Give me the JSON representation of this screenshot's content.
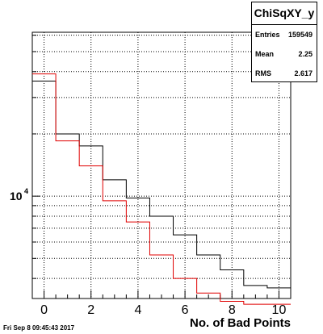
{
  "chart_data": {
    "type": "bar",
    "histogram_name": "ChiSqXY_y",
    "xlabel": "No. of Bad Points",
    "ylabel": "",
    "log_y": true,
    "grid": true,
    "xlim": [
      -0.5,
      10.5
    ],
    "ylim": [
      3200,
      62000
    ],
    "x_ticks": [
      "0",
      "2",
      "4",
      "6",
      "8",
      "10"
    ],
    "y_ticks": [
      "10^4"
    ],
    "bin_edges": [
      -0.5,
      0.5,
      1.5,
      2.5,
      3.5,
      4.5,
      5.5,
      6.5,
      7.5,
      8.5,
      9.5,
      10.5
    ],
    "series": [
      {
        "color": "#000000",
        "values": [
          36000,
          20000,
          17500,
          12000,
          9800,
          8000,
          6500,
          5200,
          4400,
          3700,
          3600
        ]
      },
      {
        "color": "#e00000",
        "values": [
          39000,
          18500,
          14000,
          9500,
          7500,
          5200,
          4000,
          3400,
          3100,
          3000,
          3000
        ]
      }
    ]
  },
  "stats": {
    "title": "ChiSqXY_y",
    "rows": [
      {
        "key": "Entries",
        "value": "159549"
      },
      {
        "key": "Mean",
        "value": "2.25"
      },
      {
        "key": "RMS",
        "value": "2.617"
      }
    ]
  },
  "footer": {
    "timestamp": "Fri Sep  8 09:45:43 2017"
  }
}
